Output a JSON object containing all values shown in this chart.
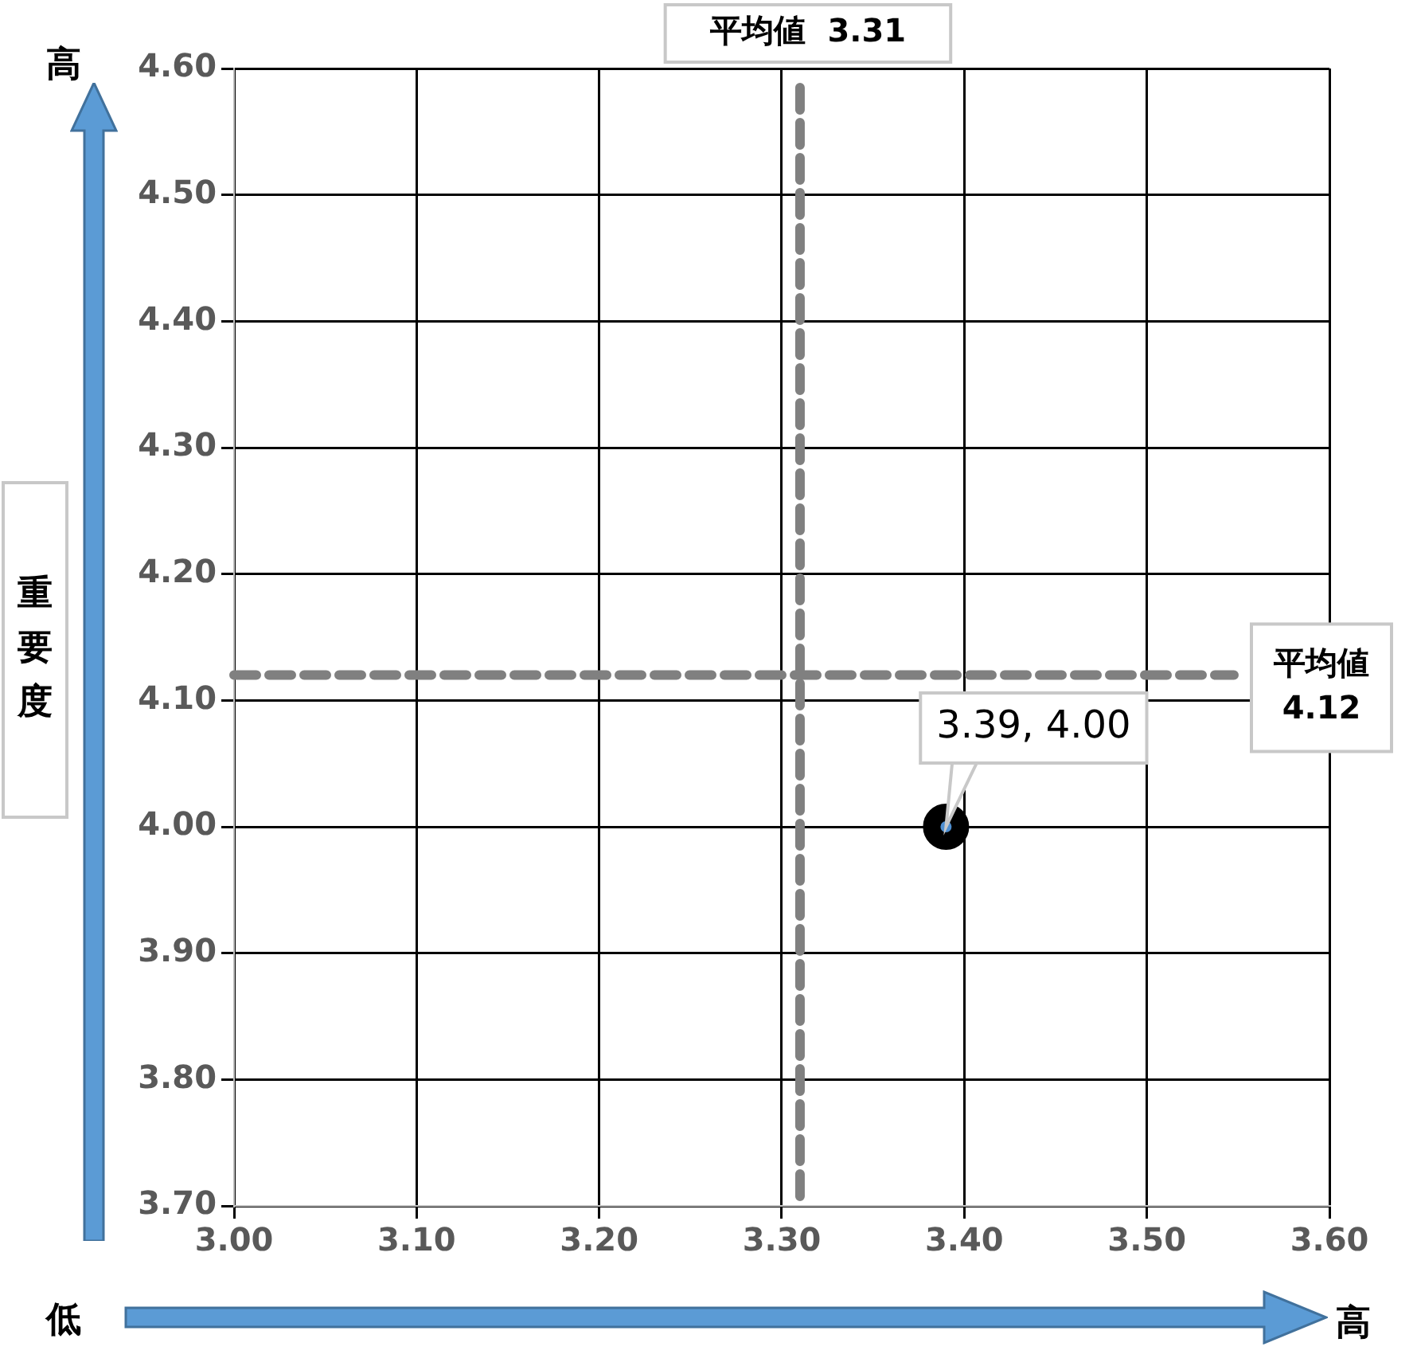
{
  "chart_data": {
    "type": "scatter",
    "ylabel": "重要度",
    "x": [
      3.39
    ],
    "series": [
      {
        "color": "#000000",
        "values": [
          4.0
        ],
        "value_labels": [
          "3.39, 4.00"
        ]
      }
    ],
    "xlim": [
      3.0,
      3.6
    ],
    "ylim": [
      3.7,
      4.6
    ],
    "xticks": [
      {
        "value": 3.0,
        "label": "3.00"
      },
      {
        "value": 3.1,
        "label": "3.10"
      },
      {
        "value": 3.2,
        "label": "3.20"
      },
      {
        "value": 3.3,
        "label": "3.30"
      },
      {
        "value": 3.4,
        "label": "3.40"
      },
      {
        "value": 3.5,
        "label": "3.50"
      },
      {
        "value": 3.6,
        "label": "3.60"
      }
    ],
    "yticks": [
      {
        "value": 3.7,
        "label": "3.70"
      },
      {
        "value": 3.8,
        "label": "3.80"
      },
      {
        "value": 3.9,
        "label": "3.90"
      },
      {
        "value": 4.0,
        "label": "4.00"
      },
      {
        "value": 4.1,
        "label": "4.10"
      },
      {
        "value": 4.2,
        "label": "4.20"
      },
      {
        "value": 4.3,
        "label": "4.30"
      },
      {
        "value": 4.4,
        "label": "4.40"
      },
      {
        "value": 4.5,
        "label": "4.50"
      },
      {
        "value": 4.6,
        "label": "4.60"
      }
    ],
    "grid": true,
    "marker": "circle",
    "legend": false,
    "ref_lines": [
      {
        "axis": "x",
        "value": 3.31,
        "label": "平均値  3.31",
        "color": "#808080",
        "line_style": "dashed"
      },
      {
        "axis": "y",
        "value": 4.12,
        "label": "平均値 4.12",
        "color": "#808080",
        "line_style": "dashed"
      }
    ],
    "annotations": [
      "高",
      "低",
      "高"
    ]
  }
}
